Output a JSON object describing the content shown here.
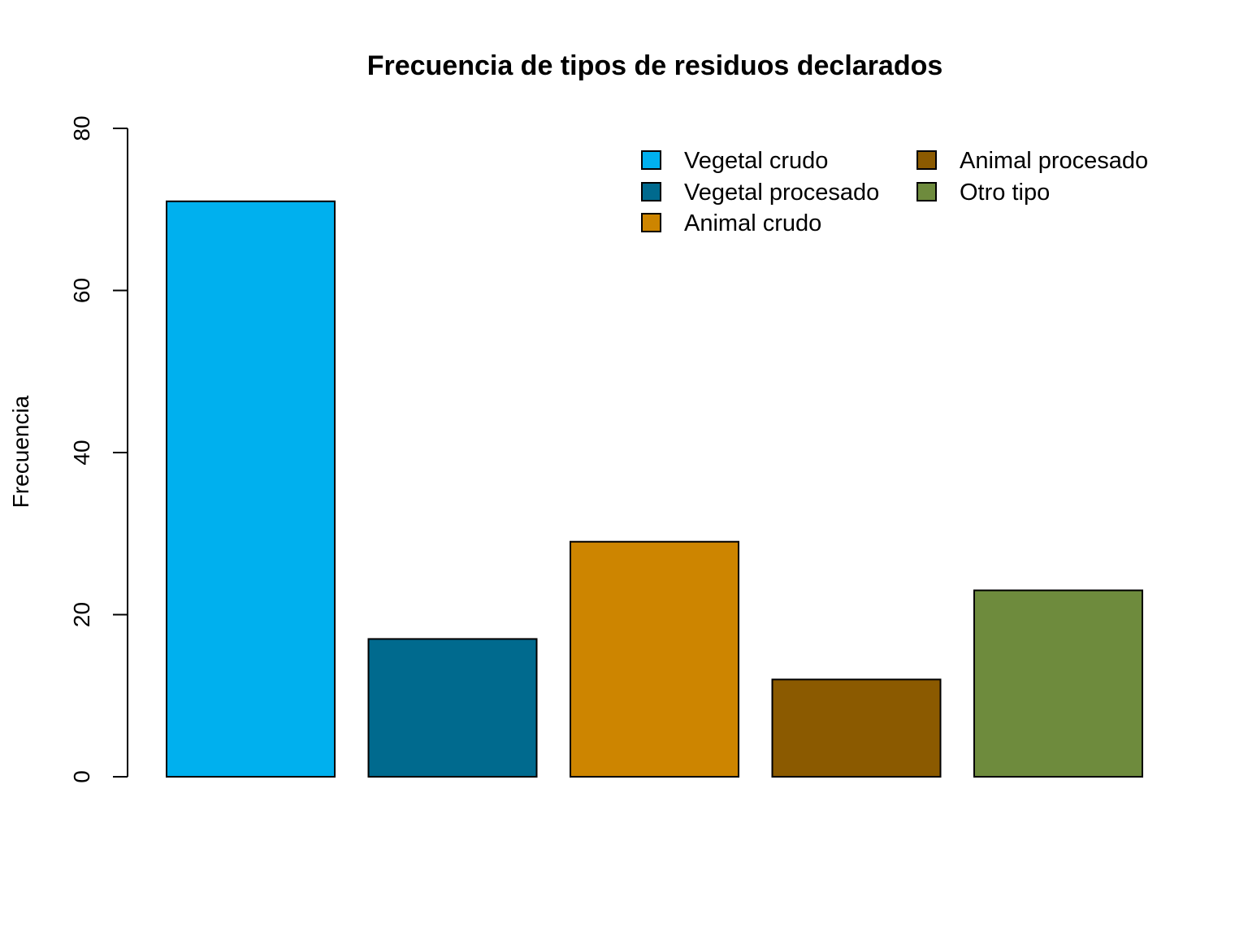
{
  "chart_data": {
    "type": "bar",
    "title": "Frecuencia de tipos de residuos declarados",
    "xlabel": "",
    "ylabel": "Frecuencia",
    "ylim": [
      0,
      80
    ],
    "yticks": [
      0,
      20,
      40,
      60,
      80
    ],
    "grid": false,
    "legend_position": "top-right",
    "categories": [
      "Vegetal crudo",
      "Vegetal procesado",
      "Animal crudo",
      "Animal procesado",
      "Otro tipo"
    ],
    "values": [
      71,
      17,
      29,
      12,
      23
    ],
    "colors": [
      "#00B0EE",
      "#006A8E",
      "#CD8500",
      "#8B5A00",
      "#6E8B3D"
    ]
  }
}
